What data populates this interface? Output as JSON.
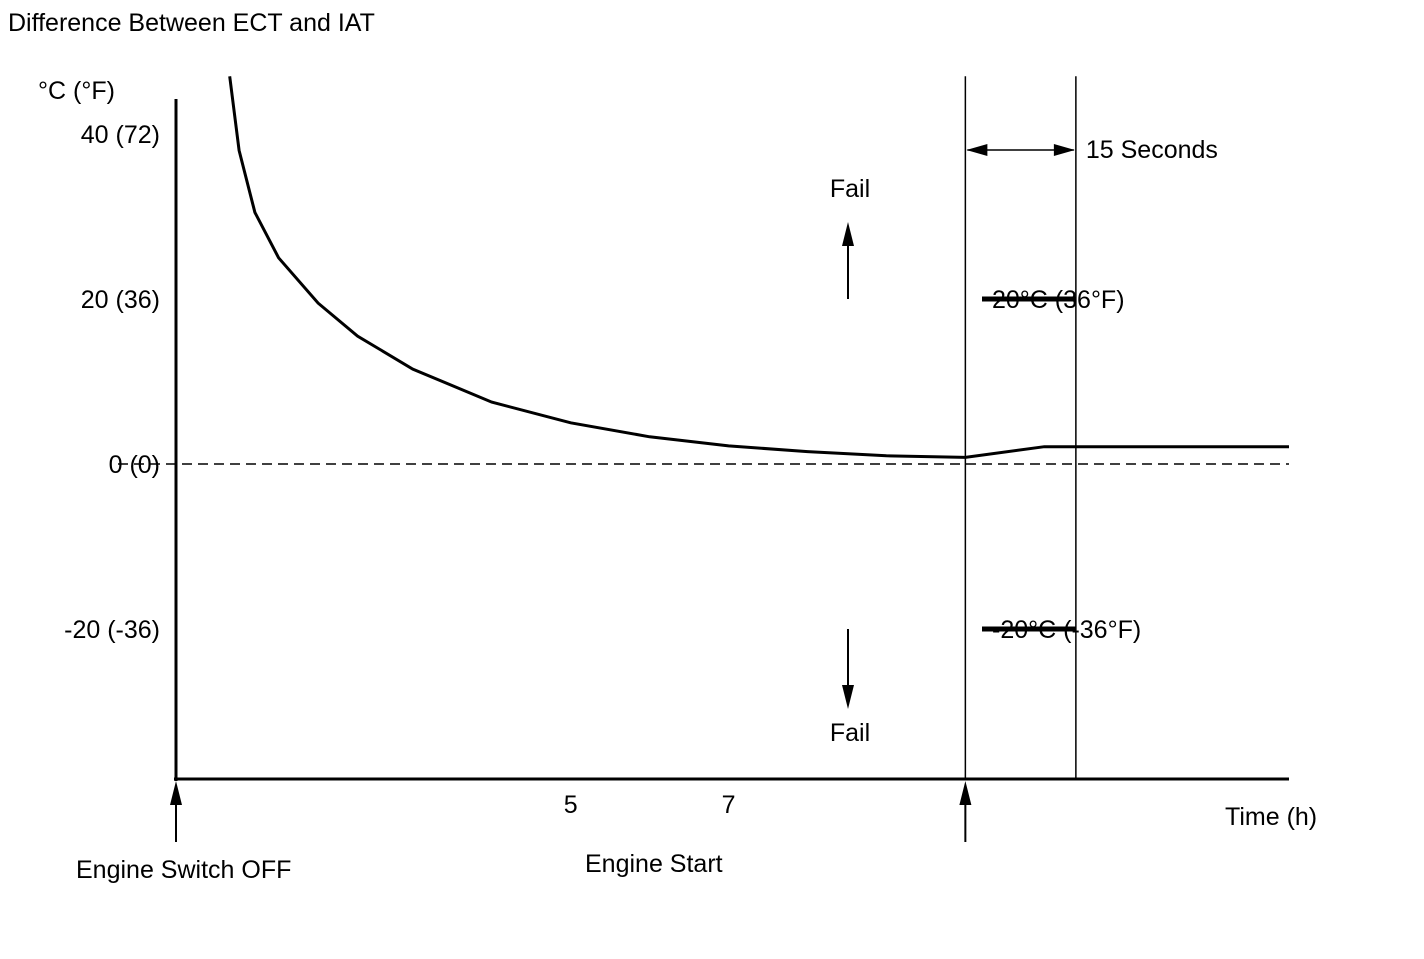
{
  "chart_data": {
    "type": "line",
    "title": "Difference Between ECT and IAT",
    "y_unit_label": "°C (°F)",
    "xlabel": "Time (h)",
    "y_ticks": [
      {
        "value": 40,
        "label": "40 (72)"
      },
      {
        "value": 20,
        "label": "20 (36)"
      },
      {
        "value": 0,
        "label": "0 (0)"
      },
      {
        "value": -20,
        "label": "-20 (-36)"
      }
    ],
    "ylim": [
      -42,
      47
    ],
    "xlim": [
      0,
      14.1
    ],
    "x_ticks": [
      {
        "value": 5,
        "label": "5"
      },
      {
        "value": 7,
        "label": "7"
      }
    ],
    "series": [
      {
        "x": [
          0.68,
          0.8,
          1.0,
          1.3,
          1.8,
          2.3,
          3.0,
          4.0,
          5.0,
          6.0,
          7.0,
          8.0,
          9.0,
          10.0,
          11.0,
          14.1
        ],
        "y": [
          47,
          38,
          30.5,
          25,
          19.5,
          15.5,
          11.5,
          7.5,
          5.0,
          3.3,
          2.2,
          1.5,
          1.0,
          0.8,
          2.1,
          2.1
        ]
      }
    ],
    "thresholds": [
      {
        "value": 20,
        "label": "20°C (36°F)",
        "annotation": "Fail",
        "direction": "up"
      },
      {
        "value": -20,
        "label": "-20°C (-36°F)",
        "annotation": "Fail",
        "direction": "down"
      }
    ],
    "markers": [
      {
        "x": 0,
        "label": "Engine Switch OFF"
      },
      {
        "x": 10.0,
        "label": "Engine Start"
      }
    ],
    "interval": {
      "start": 10.0,
      "end": 11.4,
      "label": "15 Seconds"
    },
    "zero_line": "dashed",
    "grid": false,
    "legend": "none"
  }
}
